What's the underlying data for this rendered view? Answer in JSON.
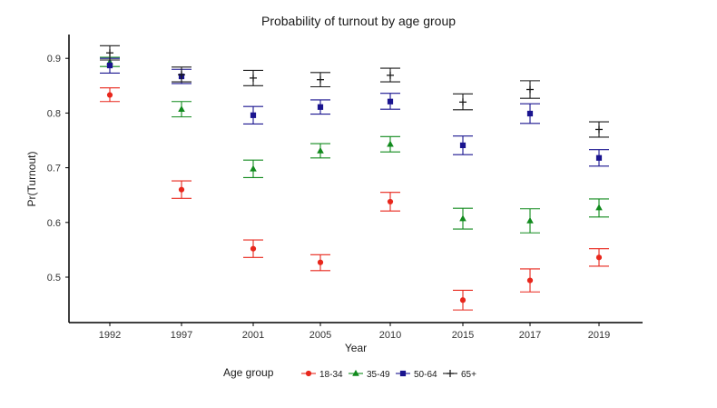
{
  "chart_data": {
    "type": "scatter",
    "title": "Probability of turnout by age group",
    "xlabel": "Year",
    "ylabel": "Pr(Turnout)",
    "categories": [
      "1992",
      "1997",
      "2001",
      "2005",
      "2010",
      "2015",
      "2017",
      "2019"
    ],
    "ylim": [
      0.42,
      0.93
    ],
    "yticks": [
      0.5,
      0.6,
      0.7,
      0.8,
      0.9
    ],
    "grid": false,
    "legend": {
      "title": "Age group",
      "position": "bottom"
    },
    "series": [
      {
        "name": "18-34",
        "color": "#e8271c",
        "marker": "circle",
        "values": [
          0.833,
          0.66,
          0.552,
          0.527,
          0.638,
          0.458,
          0.494,
          0.536
        ],
        "lower": [
          0.821,
          0.644,
          0.536,
          0.512,
          0.621,
          0.44,
          0.473,
          0.52
        ],
        "upper": [
          0.846,
          0.676,
          0.568,
          0.541,
          0.655,
          0.476,
          0.515,
          0.552
        ]
      },
      {
        "name": "35-49",
        "color": "#118a1d",
        "marker": "triangle",
        "values": [
          0.893,
          0.807,
          0.698,
          0.731,
          0.743,
          0.607,
          0.603,
          0.627
        ],
        "lower": [
          0.885,
          0.793,
          0.682,
          0.718,
          0.729,
          0.588,
          0.581,
          0.61
        ],
        "upper": [
          0.902,
          0.821,
          0.714,
          0.744,
          0.757,
          0.626,
          0.625,
          0.643
        ]
      },
      {
        "name": "50-64",
        "color": "#1a148f",
        "marker": "square",
        "values": [
          0.887,
          0.867,
          0.796,
          0.811,
          0.821,
          0.741,
          0.799,
          0.718
        ],
        "lower": [
          0.873,
          0.854,
          0.78,
          0.798,
          0.807,
          0.724,
          0.781,
          0.703
        ],
        "upper": [
          0.9,
          0.88,
          0.812,
          0.824,
          0.836,
          0.758,
          0.817,
          0.733
        ]
      },
      {
        "name": "65+",
        "color": "#1a1a1a",
        "marker": "plus",
        "values": [
          0.91,
          0.87,
          0.864,
          0.861,
          0.869,
          0.82,
          0.843,
          0.77
        ],
        "lower": [
          0.897,
          0.857,
          0.85,
          0.848,
          0.857,
          0.806,
          0.827,
          0.756
        ],
        "upper": [
          0.923,
          0.884,
          0.878,
          0.874,
          0.882,
          0.835,
          0.859,
          0.784
        ]
      }
    ]
  }
}
